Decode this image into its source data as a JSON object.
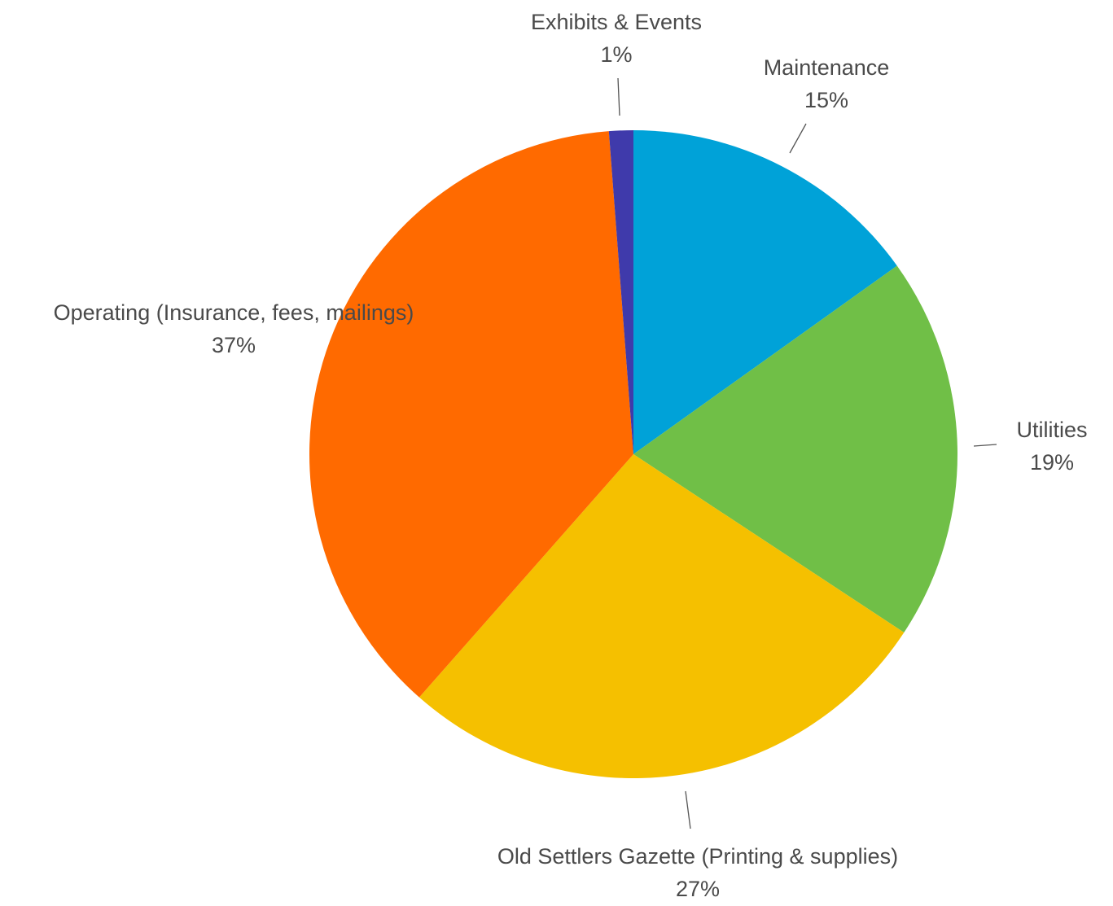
{
  "chart_data": {
    "type": "pie",
    "title": "",
    "start": "12 o'clock",
    "direction": "clockwise",
    "legend": "none",
    "slices": [
      {
        "label": "Maintenance",
        "percent_label": "15%",
        "value": 15,
        "color": "#00a2d8"
      },
      {
        "label": "Utilities",
        "percent_label": "19%",
        "value": 19,
        "color": "#70bf47"
      },
      {
        "label": "Old Settlers Gazette (Printing & supplies)",
        "percent_label": "27%",
        "value": 27,
        "color": "#f5c000"
      },
      {
        "label": "Operating (Insurance, fees, mailings)",
        "percent_label": "37%",
        "value": 37,
        "color": "#ff6a00"
      },
      {
        "label": "Exhibits & Events",
        "percent_label": "1%",
        "value": 1.2,
        "color": "#3f3aab"
      }
    ]
  }
}
